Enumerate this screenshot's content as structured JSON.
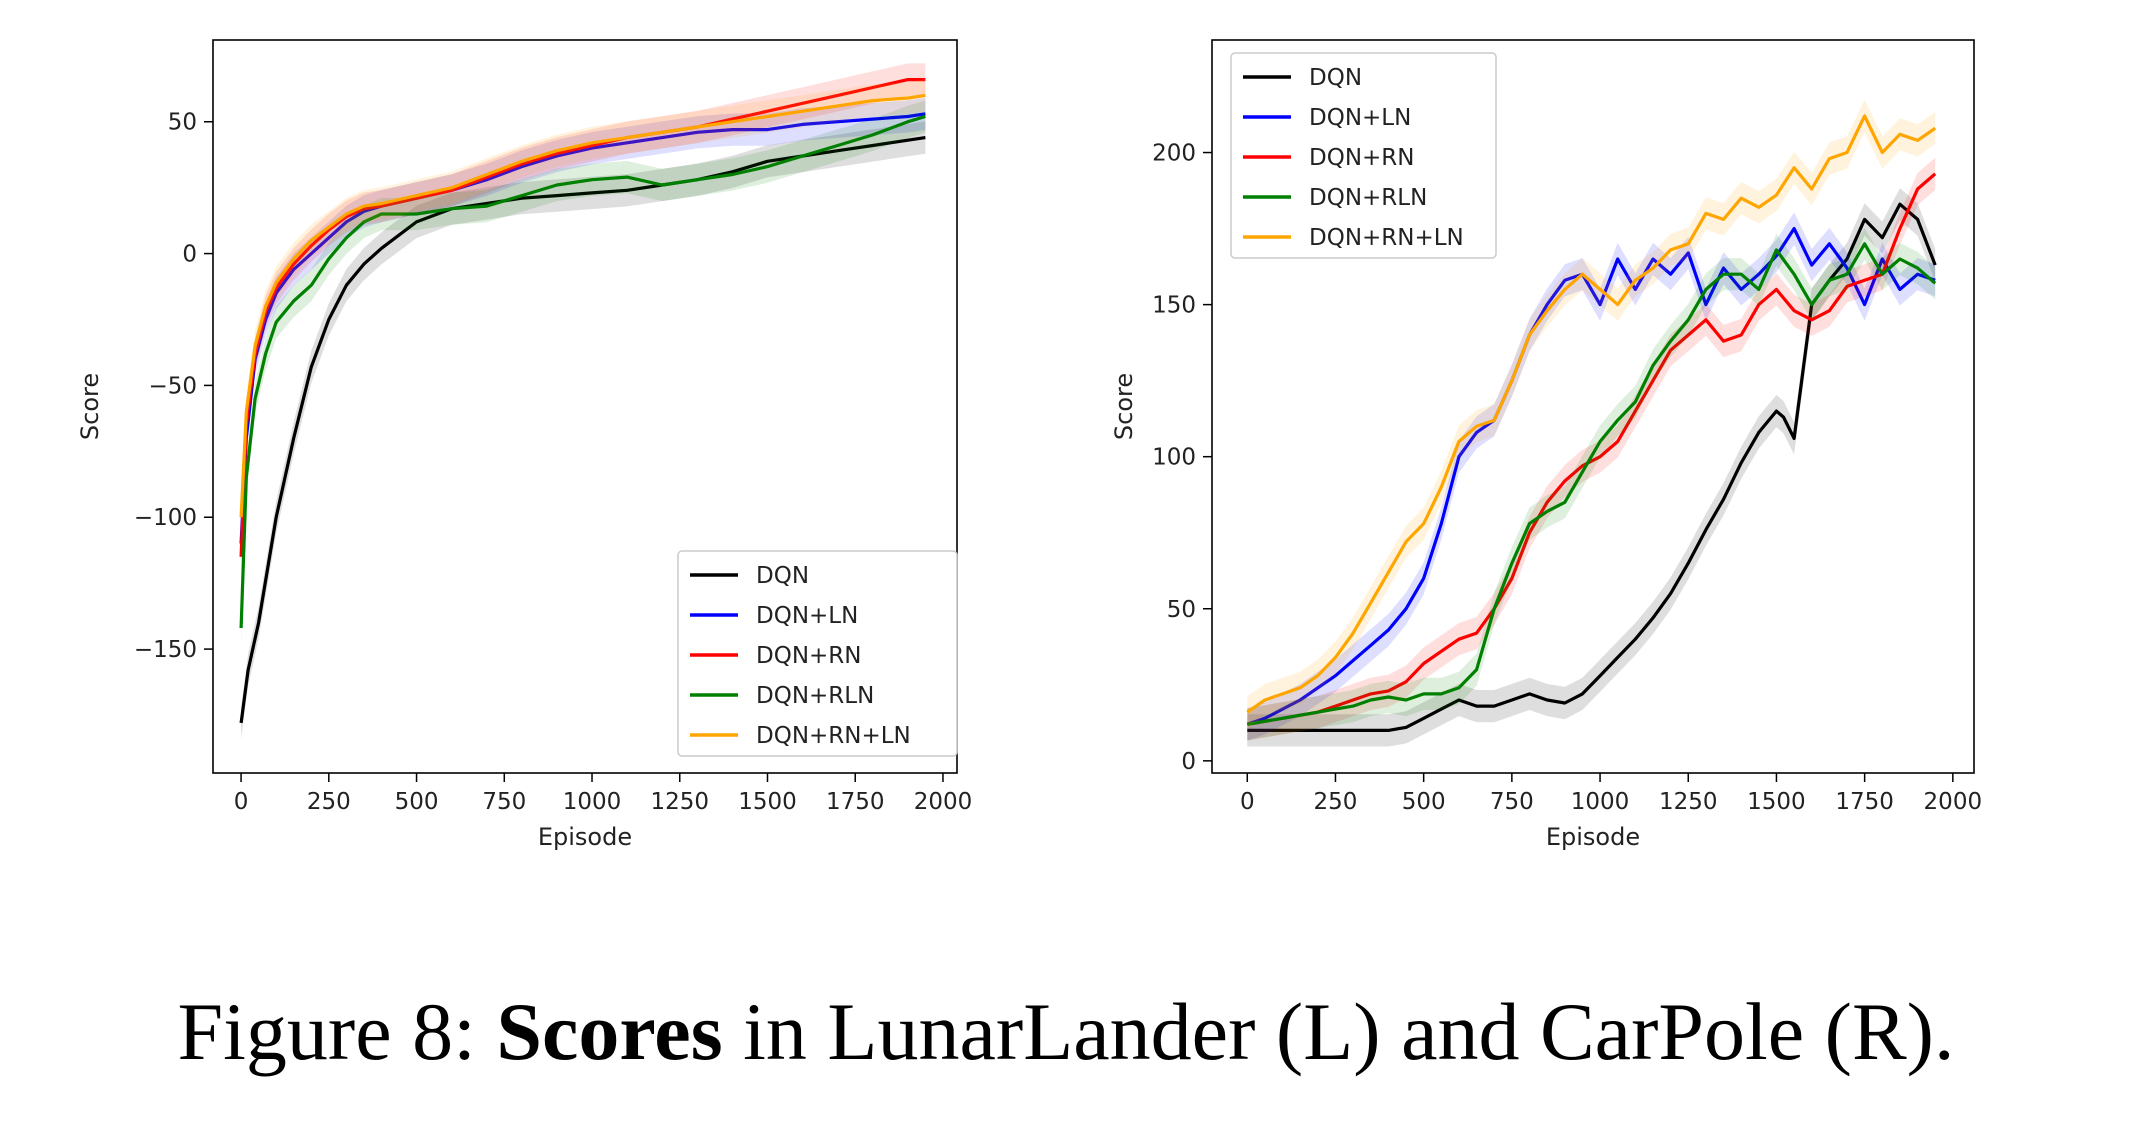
{
  "caption": {
    "prefix": "Figure 8: ",
    "bold": "Scores",
    "suffix": " in LunarLander (L) and CarPole (R)."
  },
  "chart_data": [
    {
      "type": "line",
      "title": "",
      "xlabel": "Episode",
      "ylabel": "Score",
      "xlim": [
        -80,
        2040
      ],
      "ylim": [
        -197,
        81
      ],
      "xticks": [
        0,
        250,
        500,
        750,
        1000,
        1250,
        1500,
        1750,
        2000
      ],
      "yticks": [
        50,
        0,
        -50,
        -100,
        -150
      ],
      "ytick_labels": [
        "50",
        "0",
        "−50",
        "−100",
        "−150"
      ],
      "legend_position": "lower right",
      "grid": false,
      "series": [
        {
          "name": "DQN",
          "color": "#000000",
          "x": [
            0,
            20,
            50,
            100,
            150,
            200,
            250,
            300,
            350,
            400,
            500,
            600,
            700,
            800,
            900,
            1000,
            1100,
            1200,
            1300,
            1400,
            1500,
            1600,
            1700,
            1800,
            1900,
            1950
          ],
          "y": [
            -178,
            -158,
            -140,
            -100,
            -70,
            -43,
            -25,
            -12,
            -4,
            2,
            12,
            17,
            19,
            21,
            22,
            23,
            24,
            26,
            28,
            31,
            35,
            37,
            39,
            41,
            43,
            44
          ]
        },
        {
          "name": "DQN+LN",
          "color": "#0000ff",
          "x": [
            0,
            15,
            40,
            70,
            100,
            150,
            200,
            250,
            300,
            350,
            400,
            500,
            600,
            700,
            800,
            900,
            1000,
            1100,
            1200,
            1300,
            1400,
            1500,
            1600,
            1700,
            1800,
            1900,
            1950
          ],
          "y": [
            -110,
            -70,
            -40,
            -25,
            -15,
            -6,
            0,
            6,
            12,
            16,
            18,
            21,
            24,
            28,
            33,
            37,
            40,
            42,
            44,
            46,
            47,
            47,
            49,
            50,
            51,
            52,
            53
          ]
        },
        {
          "name": "DQN+RN",
          "color": "#ff0000",
          "x": [
            0,
            15,
            40,
            70,
            100,
            150,
            200,
            250,
            300,
            350,
            400,
            500,
            600,
            700,
            800,
            900,
            1000,
            1100,
            1200,
            1300,
            1400,
            1500,
            1600,
            1700,
            1800,
            1900,
            1950
          ],
          "y": [
            -115,
            -65,
            -38,
            -22,
            -13,
            -4,
            3,
            9,
            14,
            17,
            18,
            21,
            24,
            29,
            34,
            38,
            41,
            44,
            46,
            48,
            51,
            54,
            57,
            60,
            63,
            66,
            66
          ]
        },
        {
          "name": "DQN+RLN",
          "color": "#008000",
          "x": [
            0,
            15,
            40,
            70,
            100,
            150,
            200,
            250,
            300,
            350,
            400,
            450,
            500,
            600,
            700,
            800,
            900,
            1000,
            1100,
            1200,
            1300,
            1400,
            1500,
            1600,
            1700,
            1800,
            1900,
            1950
          ],
          "y": [
            -142,
            -85,
            -55,
            -38,
            -26,
            -18,
            -12,
            -2,
            6,
            12,
            15,
            15,
            15,
            17,
            18,
            22,
            26,
            28,
            29,
            26,
            28,
            30,
            33,
            37,
            41,
            45,
            50,
            52
          ]
        },
        {
          "name": "DQN+RN+LN",
          "color": "#ffa500",
          "x": [
            0,
            15,
            40,
            70,
            100,
            150,
            200,
            250,
            300,
            350,
            400,
            500,
            600,
            700,
            800,
            900,
            1000,
            1100,
            1200,
            1300,
            1400,
            1500,
            1600,
            1700,
            1800,
            1900,
            1950
          ],
          "y": [
            -100,
            -60,
            -35,
            -20,
            -11,
            -2,
            5,
            10,
            15,
            18,
            19,
            22,
            25,
            30,
            35,
            39,
            42,
            44,
            46,
            48,
            50,
            52,
            54,
            56,
            58,
            59,
            60
          ]
        }
      ]
    },
    {
      "type": "line",
      "title": "",
      "xlabel": "Episode",
      "ylabel": "Score",
      "xlim": [
        -100,
        2060
      ],
      "ylim": [
        -4,
        237
      ],
      "xticks": [
        0,
        250,
        500,
        750,
        1000,
        1250,
        1500,
        1750,
        2000
      ],
      "yticks": [
        0,
        50,
        100,
        150,
        200
      ],
      "ytick_labels": [
        "0",
        "50",
        "100",
        "150",
        "200"
      ],
      "legend_position": "upper left",
      "grid": false,
      "series": [
        {
          "name": "DQN",
          "color": "#000000",
          "x": [
            0,
            100,
            200,
            300,
            400,
            450,
            500,
            550,
            600,
            650,
            700,
            750,
            800,
            850,
            900,
            950,
            1000,
            1050,
            1100,
            1150,
            1200,
            1250,
            1300,
            1350,
            1400,
            1450,
            1500,
            1520,
            1550,
            1600,
            1650,
            1700,
            1750,
            1800,
            1850,
            1900,
            1950
          ],
          "y": [
            10,
            10,
            10,
            10,
            10,
            11,
            14,
            17,
            20,
            18,
            18,
            20,
            22,
            20,
            19,
            22,
            28,
            34,
            40,
            47,
            55,
            65,
            76,
            86,
            98,
            108,
            115,
            113,
            106,
            150,
            158,
            165,
            178,
            172,
            183,
            178,
            163
          ]
        },
        {
          "name": "DQN+LN",
          "color": "#0000ff",
          "x": [
            0,
            50,
            100,
            150,
            200,
            250,
            300,
            350,
            400,
            450,
            500,
            550,
            600,
            650,
            700,
            750,
            800,
            850,
            900,
            950,
            1000,
            1050,
            1100,
            1150,
            1200,
            1250,
            1300,
            1350,
            1400,
            1450,
            1500,
            1550,
            1600,
            1650,
            1700,
            1750,
            1800,
            1850,
            1900,
            1950
          ],
          "y": [
            12,
            14,
            17,
            20,
            24,
            28,
            33,
            38,
            43,
            50,
            60,
            78,
            100,
            108,
            112,
            125,
            140,
            150,
            158,
            160,
            150,
            165,
            155,
            165,
            160,
            167,
            150,
            162,
            155,
            160,
            166,
            175,
            163,
            170,
            162,
            150,
            165,
            155,
            160,
            158
          ]
        },
        {
          "name": "DQN+RN",
          "color": "#ff0000",
          "x": [
            0,
            50,
            100,
            150,
            200,
            250,
            300,
            350,
            400,
            450,
            500,
            550,
            600,
            650,
            700,
            750,
            800,
            850,
            900,
            950,
            1000,
            1050,
            1100,
            1150,
            1200,
            1250,
            1300,
            1350,
            1400,
            1450,
            1500,
            1550,
            1600,
            1650,
            1700,
            1750,
            1800,
            1850,
            1900,
            1950
          ],
          "y": [
            12,
            13,
            14,
            15,
            16,
            18,
            20,
            22,
            23,
            26,
            32,
            36,
            40,
            42,
            50,
            60,
            75,
            85,
            92,
            97,
            100,
            105,
            115,
            125,
            135,
            140,
            145,
            138,
            140,
            150,
            155,
            148,
            145,
            148,
            156,
            158,
            160,
            175,
            188,
            193
          ]
        },
        {
          "name": "DQN+RLN",
          "color": "#008000",
          "x": [
            0,
            50,
            100,
            150,
            200,
            250,
            300,
            350,
            400,
            450,
            500,
            550,
            600,
            650,
            700,
            750,
            800,
            850,
            900,
            950,
            1000,
            1050,
            1100,
            1150,
            1200,
            1250,
            1300,
            1350,
            1400,
            1450,
            1500,
            1550,
            1600,
            1650,
            1700,
            1750,
            1800,
            1850,
            1900,
            1950
          ],
          "y": [
            12,
            13,
            14,
            15,
            16,
            17,
            18,
            20,
            21,
            20,
            22,
            22,
            24,
            30,
            50,
            65,
            78,
            82,
            85,
            95,
            105,
            112,
            118,
            130,
            138,
            145,
            155,
            160,
            160,
            155,
            168,
            160,
            150,
            158,
            160,
            170,
            160,
            165,
            162,
            157
          ]
        },
        {
          "name": "DQN+RN+LN",
          "color": "#ffa500",
          "x": [
            0,
            50,
            100,
            150,
            200,
            250,
            300,
            350,
            400,
            450,
            500,
            550,
            600,
            650,
            700,
            750,
            800,
            850,
            900,
            950,
            1000,
            1050,
            1100,
            1150,
            1200,
            1250,
            1300,
            1350,
            1400,
            1450,
            1500,
            1550,
            1600,
            1650,
            1700,
            1750,
            1800,
            1850,
            1900,
            1950
          ],
          "y": [
            16,
            20,
            22,
            24,
            28,
            34,
            42,
            52,
            62,
            72,
            78,
            90,
            105,
            110,
            112,
            125,
            140,
            148,
            155,
            160,
            155,
            150,
            158,
            162,
            168,
            170,
            180,
            178,
            185,
            182,
            186,
            195,
            188,
            198,
            200,
            212,
            200,
            206,
            204,
            208
          ]
        }
      ]
    }
  ]
}
